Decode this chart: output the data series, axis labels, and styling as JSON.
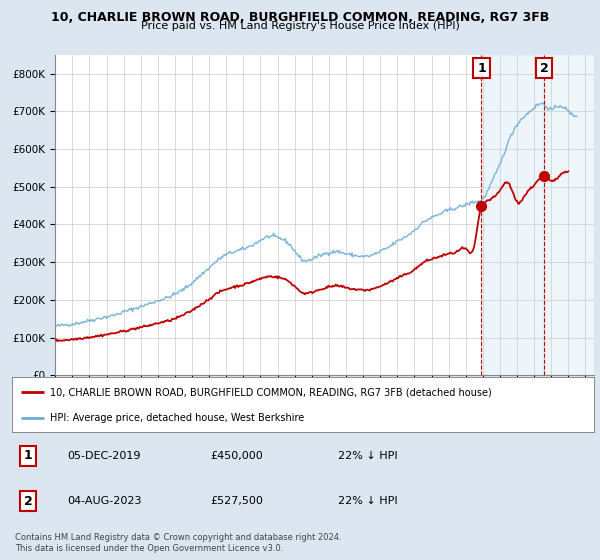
{
  "title1": "10, CHARLIE BROWN ROAD, BURGHFIELD COMMON, READING, RG7 3FB",
  "title2": "Price paid vs. HM Land Registry's House Price Index (HPI)",
  "legend_line1": "10, CHARLIE BROWN ROAD, BURGHFIELD COMMON, READING, RG7 3FB (detached house)",
  "legend_line2": "HPI: Average price, detached house, West Berkshire",
  "annotation1_label": "1",
  "annotation1_date": "05-DEC-2019",
  "annotation1_price": "£450,000",
  "annotation1_hpi": "22% ↓ HPI",
  "annotation2_label": "2",
  "annotation2_date": "04-AUG-2023",
  "annotation2_price": "£527,500",
  "annotation2_hpi": "22% ↓ HPI",
  "footnote": "Contains HM Land Registry data © Crown copyright and database right 2024.\nThis data is licensed under the Open Government Licence v3.0.",
  "hpi_color": "#6baed6",
  "price_color": "#c00000",
  "annotation_color": "#c00000",
  "vline_color": "#c00000",
  "background_color": "#dce6f1",
  "plot_bg": "#ffffff",
  "ylim": [
    0,
    850000
  ],
  "yticks": [
    0,
    100000,
    200000,
    300000,
    400000,
    500000,
    600000,
    700000,
    800000
  ],
  "sale1_x": 2019.92,
  "sale1_y": 450000,
  "sale2_x": 2023.58,
  "sale2_y": 527500,
  "xmin": 1995.0,
  "xmax": 2026.5
}
